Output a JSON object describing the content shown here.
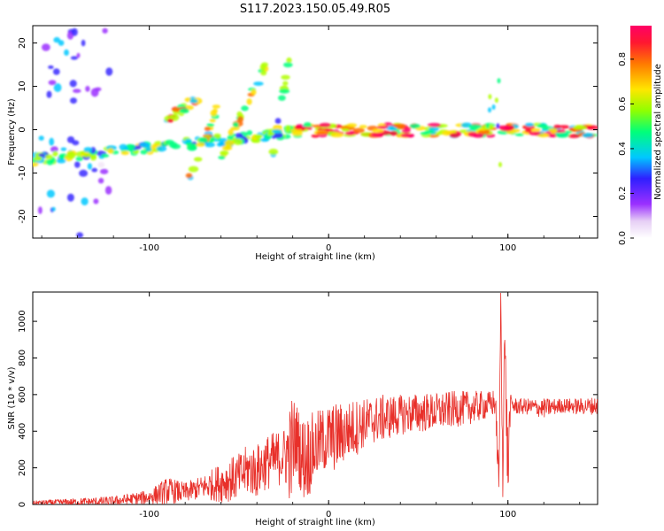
{
  "title": "S117.2023.150.05.49.R05",
  "chart_data": [
    {
      "type": "heatmap",
      "xlabel": "Height of straight line (km)",
      "ylabel": "Frequency (Hz)",
      "xlim": [
        -165,
        150
      ],
      "ylim": [
        -25,
        24
      ],
      "x_ticks": [
        -100,
        0,
        100
      ],
      "y_ticks": [
        -20,
        -10,
        0,
        10,
        20
      ],
      "colorbar": {
        "label": "Normalized spectral amplitude",
        "range": [
          0.0,
          0.95
        ],
        "ticks": [
          0.0,
          0.2,
          0.4,
          0.6,
          0.8
        ],
        "colors": [
          "#f2e6f7",
          "#9b30ff",
          "#3a2bff",
          "#00c8ff",
          "#00ff80",
          "#b0ff00",
          "#ffe000",
          "#ff6a00",
          "#ff0030",
          "#ff0066"
        ]
      },
      "features": [
        {
          "name": "noise cloud",
          "x": [
            -165,
            -122
          ],
          "y": [
            -25,
            24
          ],
          "amplitude": 0.25
        },
        {
          "name": "low-frequency streak",
          "x": [
            -165,
            -18
          ],
          "y_start": -7,
          "y_end": -0.5,
          "amplitude": 0.45
        },
        {
          "name": "diagonal streak 1",
          "x": [
            -90,
            -72
          ],
          "y_start": 2,
          "y_end": 8,
          "amplitude": 0.6
        },
        {
          "name": "diagonal streak 2",
          "x": [
            -78,
            -62
          ],
          "y_start": -11,
          "y_end": 5,
          "amplitude": 0.55
        },
        {
          "name": "diagonal streak 3",
          "x": [
            -60,
            -35
          ],
          "y_start": -6,
          "y_end": 15,
          "amplitude": 0.5
        },
        {
          "name": "diagonal streak 4",
          "x": [
            -34,
            -22
          ],
          "y_start": -12,
          "y_end": 16,
          "amplitude": 0.45
        },
        {
          "name": "main band",
          "x": [
            -18,
            148
          ],
          "y": [
            -1.5,
            1.2
          ],
          "amplitude": 0.9
        },
        {
          "name": "vertical burst",
          "x": [
            88,
            96
          ],
          "y": [
            -13,
            12
          ],
          "amplitude": 0.4
        }
      ]
    },
    {
      "type": "line",
      "xlabel": "Height of straight line (km)",
      "ylabel": "SNR (10 * v/v)",
      "xlim": [
        -165,
        150
      ],
      "ylim": [
        0,
        1160
      ],
      "x_ticks": [
        -100,
        0,
        100
      ],
      "y_ticks": [
        0,
        200,
        400,
        600,
        800,
        1000
      ],
      "series": [
        {
          "color": "#e8302a",
          "x": [
            -165,
            -140,
            -120,
            -100,
            -90,
            -80,
            -70,
            -60,
            -50,
            -45,
            -40,
            -35,
            -30,
            -25,
            -20,
            -18,
            -15,
            -12,
            -10,
            -5,
            0,
            5,
            10,
            15,
            20,
            25,
            30,
            40,
            50,
            60,
            70,
            80,
            90,
            93,
            95,
            96,
            97,
            98,
            99,
            100,
            101,
            102,
            103,
            105,
            110,
            120,
            130,
            140,
            150
          ],
          "values": [
            10,
            12,
            18,
            40,
            75,
            65,
            95,
            120,
            150,
            190,
            180,
            230,
            240,
            270,
            290,
            380,
            250,
            260,
            280,
            340,
            360,
            370,
            400,
            420,
            445,
            460,
            470,
            490,
            500,
            505,
            520,
            530,
            545,
            560,
            80,
            1150,
            200,
            900,
            600,
            150,
            500,
            550,
            540,
            535,
            535,
            525,
            540,
            535,
            540
          ],
          "peak_envelope": [
            20,
            35,
            45,
            80,
            150,
            120,
            160,
            230,
            280,
            330,
            330,
            380,
            400,
            420,
            620,
            560,
            480,
            500,
            500,
            520,
            550,
            560,
            560,
            580,
            580,
            590,
            600,
            600,
            610,
            610,
            620,
            620,
            620,
            640,
            200,
            1150,
            500,
            1000,
            800,
            400,
            600,
            600,
            590,
            580,
            580,
            580,
            580,
            580,
            590
          ]
        }
      ]
    }
  ]
}
